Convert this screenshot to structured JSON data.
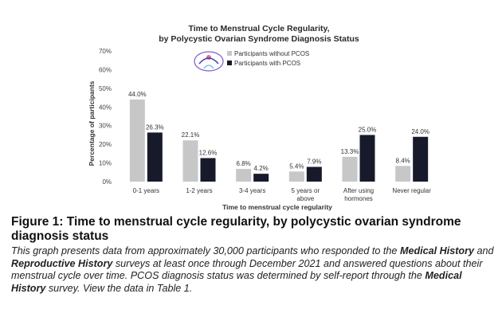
{
  "chart_data": {
    "type": "bar",
    "title": "Time to Menstrual Cycle Regularity,",
    "subtitle": "by Polycystic Ovarian Syndrome Diagnosis Status",
    "xlabel": "Time to menstrual cycle regularity",
    "ylabel": "Percentage of participants",
    "ylim": [
      0,
      70
    ],
    "yticks": [
      "0%",
      "10%",
      "20%",
      "30%",
      "40%",
      "50%",
      "60%",
      "70%"
    ],
    "categories": [
      [
        "0-1 years"
      ],
      [
        "1-2 years"
      ],
      [
        "3-4 years"
      ],
      [
        "5 years or",
        "above"
      ],
      [
        "After using",
        "hormones"
      ],
      [
        "Never regular"
      ]
    ],
    "series": [
      {
        "name": "Participants without PCOS",
        "color": "#c7c7c7",
        "values": [
          44.0,
          22.1,
          6.8,
          5.4,
          13.3,
          8.4
        ],
        "labels": [
          "44.0%",
          "22.1%",
          "6.8%",
          "5.4%",
          "13.3%",
          "8.4%"
        ]
      },
      {
        "name": "Participants with PCOS",
        "color": "#171a2b",
        "values": [
          26.3,
          12.6,
          4.2,
          7.9,
          25.0,
          24.0
        ],
        "labels": [
          "26.3%",
          "12.6%",
          "4.2%",
          "7.9%",
          "25.0%",
          "24.0%"
        ]
      }
    ],
    "legend_position": "top-center",
    "grid": false
  },
  "caption": {
    "title": "Figure 1: Time to menstrual cycle regularity, by polycystic ovarian syndrome diagnosis status",
    "body_1": "This graph presents data from approximately 30,000 participants who responded to the ",
    "body_b1": "Medical History",
    "body_2": " and ",
    "body_b2": "Reproductive History",
    "body_3": " surveys at least once through December 2021 and answered questions about their menstrual cycle over time. PCOS diagnosis status was determined by self-report through the ",
    "body_b3": "Medical History",
    "body_4": " survey. View the data in Table 1."
  }
}
